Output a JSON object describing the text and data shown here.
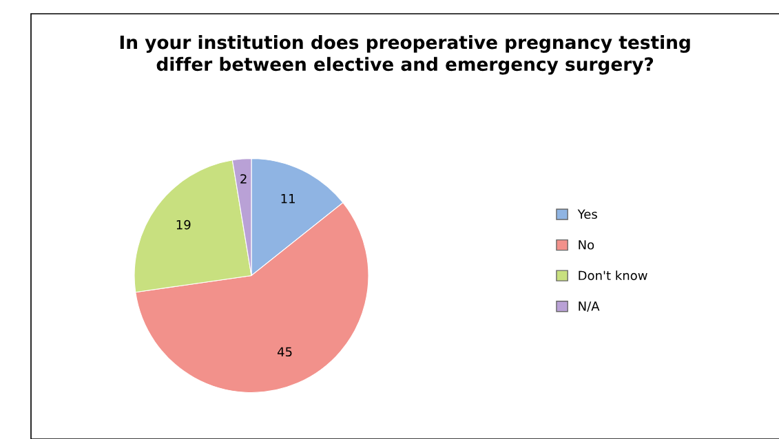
{
  "chart_data": {
    "type": "pie",
    "title": "In your institution does preoperative pregnancy testing\ndiffer between elective and emergency surgery?",
    "categories": [
      "Yes",
      "No",
      "Don't know",
      "N/A"
    ],
    "values": [
      11,
      45,
      19,
      2
    ],
    "colors": [
      "#8fb4e3",
      "#f2918b",
      "#c8e07f",
      "#b9a1d6"
    ],
    "data_labels": true,
    "legend": "right"
  }
}
